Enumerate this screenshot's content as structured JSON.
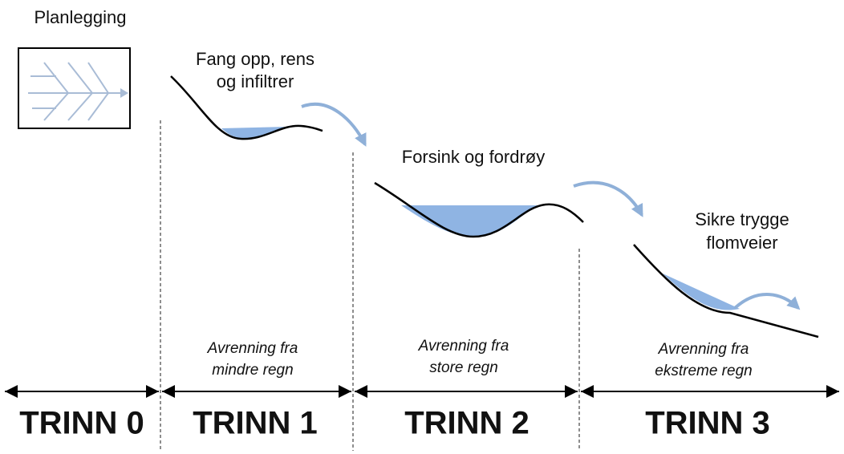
{
  "stages": [
    {
      "title": [
        "Planlegging"
      ],
      "name": "TRINN 0"
    },
    {
      "title": [
        "Fang opp, rens",
        "og infiltrer"
      ],
      "runoff": [
        "Avrenning fra",
        "mindre regn"
      ],
      "name": "TRINN 1"
    },
    {
      "title": [
        "Forsink og fordrøy"
      ],
      "runoff": [
        "Avrenning fra",
        "store regn"
      ],
      "name": "TRINN 2"
    },
    {
      "title": [
        "Sikre trygge",
        "flomveier"
      ],
      "runoff": [
        "Avrenning fra",
        "ekstreme regn"
      ],
      "name": "TRINN 3"
    }
  ]
}
